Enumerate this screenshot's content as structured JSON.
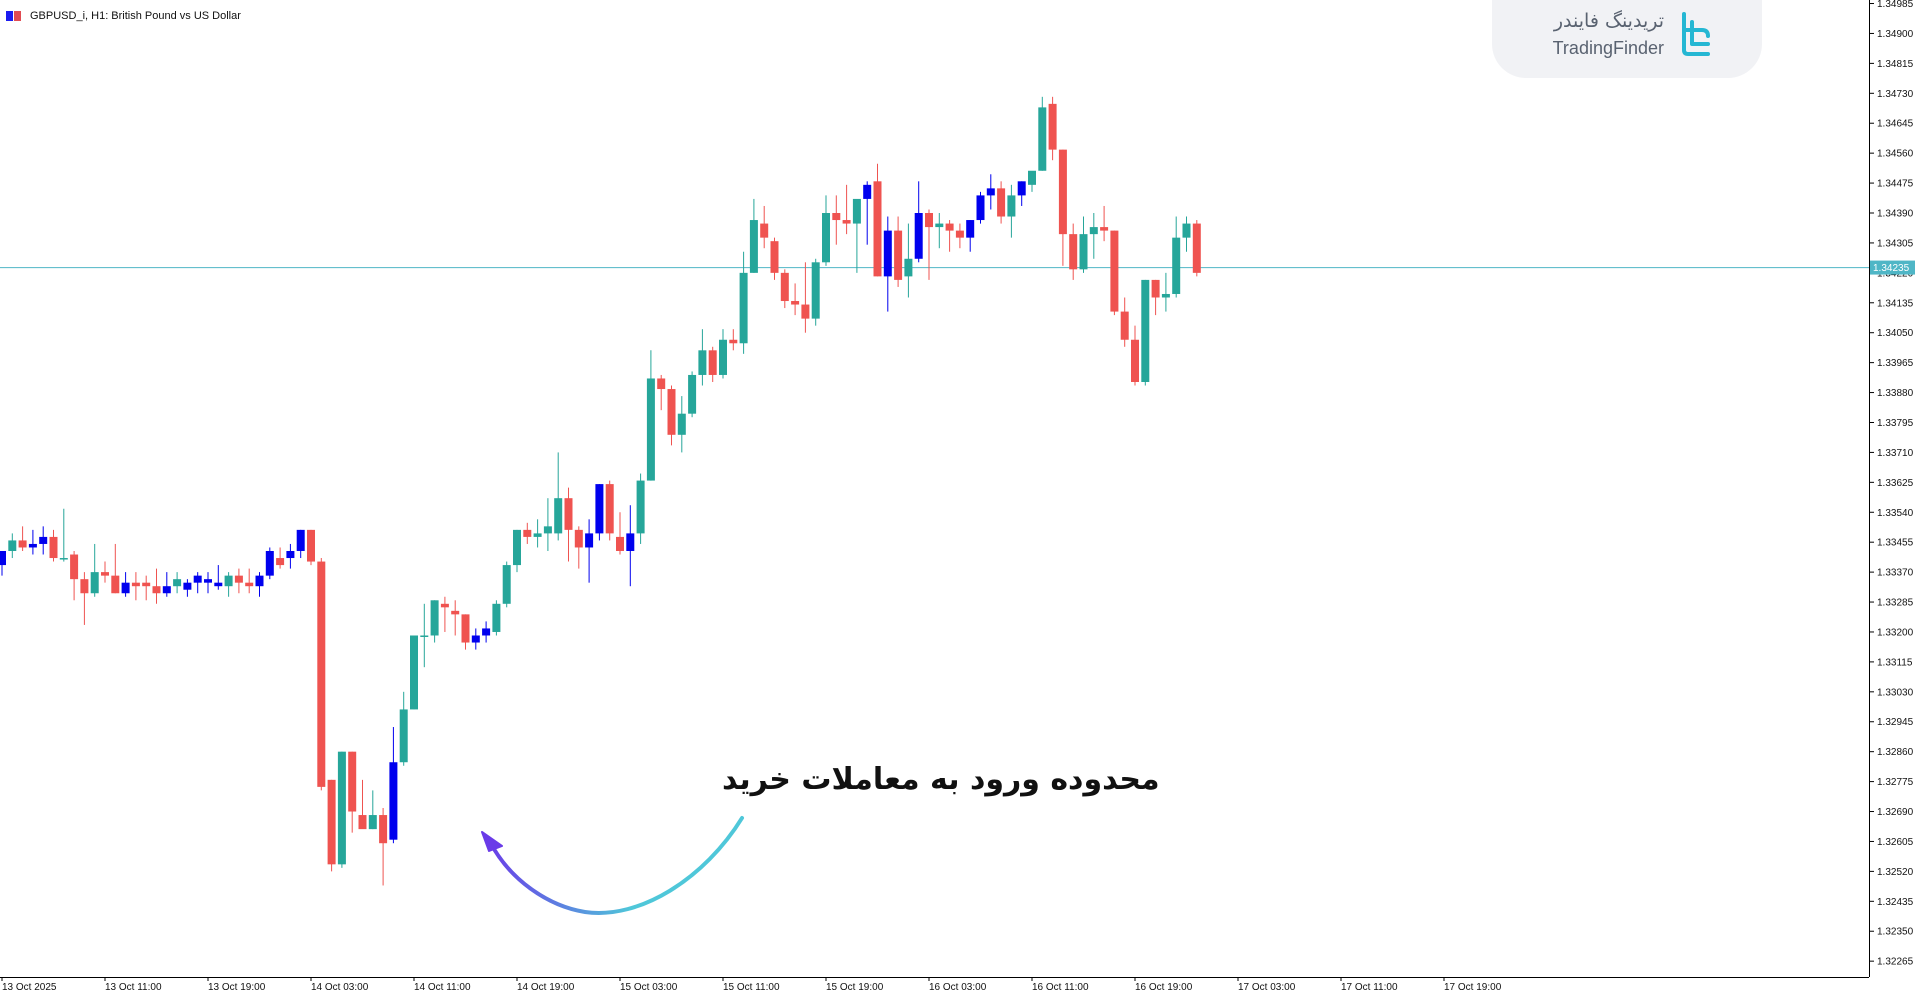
{
  "chart_header": {
    "symbol_title": "GBPUSD_i, H1:  British Pound vs US Dollar",
    "icon_colors": [
      "#1c1cf0",
      "#e14b52"
    ]
  },
  "watermark": {
    "text_fa": "تریدینگ فایندر",
    "text_en": "TradingFinder",
    "logo_icon": "tradingfinder-logo-icon",
    "logo_color": "#25b7d3"
  },
  "annotation": {
    "text": "محدوده ورود به معاملات خرید",
    "arrow_icon": "curved-arrow-icon",
    "arrow_gradient": [
      "#4fc7d9",
      "#6a3be8"
    ]
  },
  "colors": {
    "bull": "#26a69a",
    "bear": "#ef5350",
    "signal": "#0000ee",
    "axis": "#000000",
    "current_price_line": "#4fb6c6",
    "current_price_label_bg": "#4fb6c6"
  },
  "chart_data": {
    "type": "candlestick",
    "symbol": "GBPUSD_i",
    "timeframe": "H1",
    "title": "British Pound vs US Dollar",
    "ylim": [
      1.3222,
      1.34995
    ],
    "y_ticks": [
      "1.34985",
      "1.34900",
      "1.34815",
      "1.34730",
      "1.34645",
      "1.34560",
      "1.34475",
      "1.34390",
      "1.34305",
      "1.34220",
      "1.34135",
      "1.34050",
      "1.33965",
      "1.33880",
      "1.33795",
      "1.33710",
      "1.33625",
      "1.33540",
      "1.33455",
      "1.33370",
      "1.33285",
      "1.33200",
      "1.33115",
      "1.33030",
      "1.32945",
      "1.32860",
      "1.32775",
      "1.32690",
      "1.32605",
      "1.32520",
      "1.32435",
      "1.32350",
      "1.32265"
    ],
    "x_labels": [
      {
        "text": "13 Oct 2025",
        "bar": 0
      },
      {
        "text": "13 Oct 11:00",
        "bar": 10
      },
      {
        "text": "13 Oct 19:00",
        "bar": 20
      },
      {
        "text": "14 Oct 03:00",
        "bar": 30
      },
      {
        "text": "14 Oct 11:00",
        "bar": 40
      },
      {
        "text": "14 Oct 19:00",
        "bar": 50
      },
      {
        "text": "15 Oct 03:00",
        "bar": 60
      },
      {
        "text": "15 Oct 11:00",
        "bar": 70
      },
      {
        "text": "15 Oct 19:00",
        "bar": 80
      },
      {
        "text": "16 Oct 03:00",
        "bar": 90
      },
      {
        "text": "16 Oct 11:00",
        "bar": 100
      },
      {
        "text": "16 Oct 19:00",
        "bar": 110
      },
      {
        "text": "17 Oct 03:00",
        "bar": 120
      },
      {
        "text": "17 Oct 11:00",
        "bar": 130
      },
      {
        "text": "17 Oct 19:00",
        "bar": 140
      }
    ],
    "current_price": {
      "label": "1.34235",
      "value": 1.34235
    },
    "candles": [
      {
        "o": 1.3339,
        "h": 1.3343,
        "l": 1.3336,
        "c": 1.3343,
        "s": "signal"
      },
      {
        "o": 1.3343,
        "h": 1.3348,
        "l": 1.3341,
        "c": 1.3346
      },
      {
        "o": 1.3346,
        "h": 1.335,
        "l": 1.3343,
        "c": 1.3344
      },
      {
        "o": 1.3344,
        "h": 1.3349,
        "l": 1.3342,
        "c": 1.3345,
        "s": "signal"
      },
      {
        "o": 1.3345,
        "h": 1.335,
        "l": 1.3342,
        "c": 1.3347,
        "s": "signal"
      },
      {
        "o": 1.3347,
        "h": 1.3349,
        "l": 1.334,
        "c": 1.3341
      },
      {
        "o": 1.3341,
        "h": 1.3355,
        "l": 1.334,
        "c": 1.3341
      },
      {
        "o": 1.3342,
        "h": 1.3343,
        "l": 1.3329,
        "c": 1.3335
      },
      {
        "o": 1.3335,
        "h": 1.3337,
        "l": 1.3322,
        "c": 1.3331
      },
      {
        "o": 1.3331,
        "h": 1.3345,
        "l": 1.333,
        "c": 1.3337
      },
      {
        "o": 1.3337,
        "h": 1.334,
        "l": 1.3334,
        "c": 1.3336
      },
      {
        "o": 1.3336,
        "h": 1.3345,
        "l": 1.3331,
        "c": 1.3331
      },
      {
        "o": 1.3331,
        "h": 1.3337,
        "l": 1.333,
        "c": 1.3334,
        "s": "signal"
      },
      {
        "o": 1.3334,
        "h": 1.3337,
        "l": 1.3329,
        "c": 1.3333
      },
      {
        "o": 1.3334,
        "h": 1.3336,
        "l": 1.3329,
        "c": 1.3333
      },
      {
        "o": 1.3333,
        "h": 1.3338,
        "l": 1.3328,
        "c": 1.3331
      },
      {
        "o": 1.3331,
        "h": 1.3337,
        "l": 1.333,
        "c": 1.3333,
        "s": "signal"
      },
      {
        "o": 1.3333,
        "h": 1.3337,
        "l": 1.3331,
        "c": 1.3335
      },
      {
        "o": 1.3332,
        "h": 1.3335,
        "l": 1.333,
        "c": 1.3334,
        "s": "signal"
      },
      {
        "o": 1.3334,
        "h": 1.3337,
        "l": 1.3331,
        "c": 1.3336,
        "s": "signal"
      },
      {
        "o": 1.3335,
        "h": 1.3337,
        "l": 1.3331,
        "c": 1.3334,
        "s": "signal"
      },
      {
        "o": 1.3334,
        "h": 1.3339,
        "l": 1.3332,
        "c": 1.3333,
        "s": "signal"
      },
      {
        "o": 1.3333,
        "h": 1.3337,
        "l": 1.333,
        "c": 1.3336
      },
      {
        "o": 1.3336,
        "h": 1.3338,
        "l": 1.3331,
        "c": 1.3334
      },
      {
        "o": 1.3334,
        "h": 1.3338,
        "l": 1.3331,
        "c": 1.3333
      },
      {
        "o": 1.3333,
        "h": 1.3337,
        "l": 1.333,
        "c": 1.3336,
        "s": "signal"
      },
      {
        "o": 1.3336,
        "h": 1.3344,
        "l": 1.3335,
        "c": 1.3343,
        "s": "signal"
      },
      {
        "o": 1.3341,
        "h": 1.3344,
        "l": 1.3338,
        "c": 1.3339
      },
      {
        "o": 1.3341,
        "h": 1.3345,
        "l": 1.3338,
        "c": 1.3343,
        "s": "signal"
      },
      {
        "o": 1.3343,
        "h": 1.3349,
        "l": 1.3341,
        "c": 1.3349,
        "s": "signal"
      },
      {
        "o": 1.3349,
        "h": 1.3349,
        "l": 1.3339,
        "c": 1.334
      },
      {
        "o": 1.334,
        "h": 1.3341,
        "l": 1.3275,
        "c": 1.3276
      },
      {
        "o": 1.3278,
        "h": 1.3278,
        "l": 1.3252,
        "c": 1.3254
      },
      {
        "o": 1.3254,
        "h": 1.3286,
        "l": 1.3253,
        "c": 1.3286
      },
      {
        "o": 1.3286,
        "h": 1.3286,
        "l": 1.3263,
        "c": 1.3269
      },
      {
        "o": 1.3268,
        "h": 1.3278,
        "l": 1.3265,
        "c": 1.3264
      },
      {
        "o": 1.3264,
        "h": 1.3275,
        "l": 1.3264,
        "c": 1.3268
      },
      {
        "o": 1.3268,
        "h": 1.327,
        "l": 1.3248,
        "c": 1.326
      },
      {
        "o": 1.3261,
        "h": 1.3293,
        "l": 1.326,
        "c": 1.3283,
        "s": "signal"
      },
      {
        "o": 1.3283,
        "h": 1.3303,
        "l": 1.3282,
        "c": 1.3298
      },
      {
        "o": 1.3298,
        "h": 1.3319,
        "l": 1.3298,
        "c": 1.3319
      },
      {
        "o": 1.3319,
        "h": 1.3328,
        "l": 1.331,
        "c": 1.3319
      },
      {
        "o": 1.3319,
        "h": 1.3329,
        "l": 1.3317,
        "c": 1.3329
      },
      {
        "o": 1.3328,
        "h": 1.333,
        "l": 1.332,
        "c": 1.3327
      },
      {
        "o": 1.3326,
        "h": 1.3329,
        "l": 1.3319,
        "c": 1.3325
      },
      {
        "o": 1.3325,
        "h": 1.3325,
        "l": 1.3315,
        "c": 1.3317
      },
      {
        "o": 1.3317,
        "h": 1.3321,
        "l": 1.3315,
        "c": 1.3319,
        "s": "signal"
      },
      {
        "o": 1.3319,
        "h": 1.3323,
        "l": 1.3317,
        "c": 1.3321,
        "s": "signal"
      },
      {
        "o": 1.332,
        "h": 1.3329,
        "l": 1.3319,
        "c": 1.3328
      },
      {
        "o": 1.3328,
        "h": 1.334,
        "l": 1.3327,
        "c": 1.3339
      },
      {
        "o": 1.3339,
        "h": 1.3349,
        "l": 1.3337,
        "c": 1.3349
      },
      {
        "o": 1.3349,
        "h": 1.3351,
        "l": 1.3345,
        "c": 1.3347
      },
      {
        "o": 1.3347,
        "h": 1.3352,
        "l": 1.3344,
        "c": 1.3348
      },
      {
        "o": 1.3348,
        "h": 1.3358,
        "l": 1.3343,
        "c": 1.335
      },
      {
        "o": 1.3348,
        "h": 1.3371,
        "l": 1.3346,
        "c": 1.3358
      },
      {
        "o": 1.3358,
        "h": 1.3361,
        "l": 1.334,
        "c": 1.3349
      },
      {
        "o": 1.3349,
        "h": 1.335,
        "l": 1.3338,
        "c": 1.3344
      },
      {
        "o": 1.3344,
        "h": 1.3352,
        "l": 1.3334,
        "c": 1.3348,
        "s": "signal"
      },
      {
        "o": 1.3348,
        "h": 1.3362,
        "l": 1.3346,
        "c": 1.3362,
        "s": "signal"
      },
      {
        "o": 1.3362,
        "h": 1.3363,
        "l": 1.3346,
        "c": 1.3348
      },
      {
        "o": 1.3347,
        "h": 1.3354,
        "l": 1.3342,
        "c": 1.3343
      },
      {
        "o": 1.3343,
        "h": 1.3356,
        "l": 1.3333,
        "c": 1.3348,
        "s": "signal"
      },
      {
        "o": 1.3348,
        "h": 1.3365,
        "l": 1.3345,
        "c": 1.3363
      },
      {
        "o": 1.3363,
        "h": 1.34,
        "l": 1.3363,
        "c": 1.3392
      },
      {
        "o": 1.3392,
        "h": 1.3393,
        "l": 1.3383,
        "c": 1.3389
      },
      {
        "o": 1.3389,
        "h": 1.339,
        "l": 1.3373,
        "c": 1.3376
      },
      {
        "o": 1.3376,
        "h": 1.3387,
        "l": 1.3371,
        "c": 1.3382
      },
      {
        "o": 1.3382,
        "h": 1.3394,
        "l": 1.3381,
        "c": 1.3393
      },
      {
        "o": 1.3393,
        "h": 1.3406,
        "l": 1.339,
        "c": 1.34
      },
      {
        "o": 1.34,
        "h": 1.3401,
        "l": 1.3391,
        "c": 1.3393
      },
      {
        "o": 1.3393,
        "h": 1.3406,
        "l": 1.3392,
        "c": 1.3403
      },
      {
        "o": 1.3403,
        "h": 1.3406,
        "l": 1.34,
        "c": 1.3402
      },
      {
        "o": 1.3402,
        "h": 1.3428,
        "l": 1.3399,
        "c": 1.3422
      },
      {
        "o": 1.3422,
        "h": 1.3443,
        "l": 1.3422,
        "c": 1.3437
      },
      {
        "o": 1.3436,
        "h": 1.3441,
        "l": 1.3429,
        "c": 1.3432
      },
      {
        "o": 1.3431,
        "h": 1.3432,
        "l": 1.342,
        "c": 1.3422
      },
      {
        "o": 1.3422,
        "h": 1.3423,
        "l": 1.3412,
        "c": 1.3414
      },
      {
        "o": 1.3414,
        "h": 1.3419,
        "l": 1.341,
        "c": 1.3413
      },
      {
        "o": 1.3413,
        "h": 1.3425,
        "l": 1.3405,
        "c": 1.3409
      },
      {
        "o": 1.3409,
        "h": 1.3426,
        "l": 1.3407,
        "c": 1.3425
      },
      {
        "o": 1.3425,
        "h": 1.3444,
        "l": 1.3424,
        "c": 1.3439
      },
      {
        "o": 1.3439,
        "h": 1.3444,
        "l": 1.343,
        "c": 1.3437
      },
      {
        "o": 1.3437,
        "h": 1.3447,
        "l": 1.3433,
        "c": 1.3436
      },
      {
        "o": 1.3436,
        "h": 1.3441,
        "l": 1.3422,
        "c": 1.3443
      },
      {
        "o": 1.3443,
        "h": 1.3448,
        "l": 1.343,
        "c": 1.3447,
        "s": "signal"
      },
      {
        "o": 1.3448,
        "h": 1.3453,
        "l": 1.3421,
        "c": 1.3421
      },
      {
        "o": 1.3421,
        "h": 1.3438,
        "l": 1.3411,
        "c": 1.3434,
        "s": "signal"
      },
      {
        "o": 1.3434,
        "h": 1.3438,
        "l": 1.3418,
        "c": 1.342
      },
      {
        "o": 1.3421,
        "h": 1.3436,
        "l": 1.3415,
        "c": 1.3426
      },
      {
        "o": 1.3426,
        "h": 1.3448,
        "l": 1.3425,
        "c": 1.3439,
        "s": "signal"
      },
      {
        "o": 1.3439,
        "h": 1.344,
        "l": 1.342,
        "c": 1.3435
      },
      {
        "o": 1.3435,
        "h": 1.3439,
        "l": 1.3429,
        "c": 1.3436
      },
      {
        "o": 1.3436,
        "h": 1.3437,
        "l": 1.3428,
        "c": 1.3434
      },
      {
        "o": 1.3434,
        "h": 1.3436,
        "l": 1.3429,
        "c": 1.3432
      },
      {
        "o": 1.3432,
        "h": 1.3437,
        "l": 1.3428,
        "c": 1.3437,
        "s": "signal"
      },
      {
        "o": 1.3437,
        "h": 1.3445,
        "l": 1.3436,
        "c": 1.3444,
        "s": "signal"
      },
      {
        "o": 1.3444,
        "h": 1.345,
        "l": 1.344,
        "c": 1.3446,
        "s": "signal"
      },
      {
        "o": 1.3446,
        "h": 1.3448,
        "l": 1.3436,
        "c": 1.3438
      },
      {
        "o": 1.3438,
        "h": 1.3447,
        "l": 1.3432,
        "c": 1.3444
      },
      {
        "o": 1.3444,
        "h": 1.3448,
        "l": 1.3441,
        "c": 1.3448,
        "s": "signal"
      },
      {
        "o": 1.3447,
        "h": 1.345,
        "l": 1.3445,
        "c": 1.3451
      },
      {
        "o": 1.3451,
        "h": 1.3472,
        "l": 1.3451,
        "c": 1.3469
      },
      {
        "o": 1.347,
        "h": 1.3472,
        "l": 1.3454,
        "c": 1.3457
      },
      {
        "o": 1.3457,
        "h": 1.3457,
        "l": 1.3424,
        "c": 1.3433
      },
      {
        "o": 1.3433,
        "h": 1.3436,
        "l": 1.342,
        "c": 1.3423
      },
      {
        "o": 1.3423,
        "h": 1.3438,
        "l": 1.3422,
        "c": 1.3433
      },
      {
        "o": 1.3433,
        "h": 1.3439,
        "l": 1.3426,
        "c": 1.3435
      },
      {
        "o": 1.3435,
        "h": 1.3441,
        "l": 1.3431,
        "c": 1.3434
      },
      {
        "o": 1.3434,
        "h": 1.3434,
        "l": 1.341,
        "c": 1.3411
      },
      {
        "o": 1.3411,
        "h": 1.3415,
        "l": 1.3401,
        "c": 1.3403
      },
      {
        "o": 1.3403,
        "h": 1.3407,
        "l": 1.339,
        "c": 1.3391
      },
      {
        "o": 1.3391,
        "h": 1.342,
        "l": 1.339,
        "c": 1.342
      },
      {
        "o": 1.342,
        "h": 1.342,
        "l": 1.341,
        "c": 1.3415
      },
      {
        "o": 1.3415,
        "h": 1.3422,
        "l": 1.3411,
        "c": 1.3416
      },
      {
        "o": 1.3416,
        "h": 1.3438,
        "l": 1.3415,
        "c": 1.3432
      },
      {
        "o": 1.3432,
        "h": 1.3438,
        "l": 1.3428,
        "c": 1.3436
      },
      {
        "o": 1.3436,
        "h": 1.3437,
        "l": 1.3421,
        "c": 1.3422
      }
    ]
  }
}
